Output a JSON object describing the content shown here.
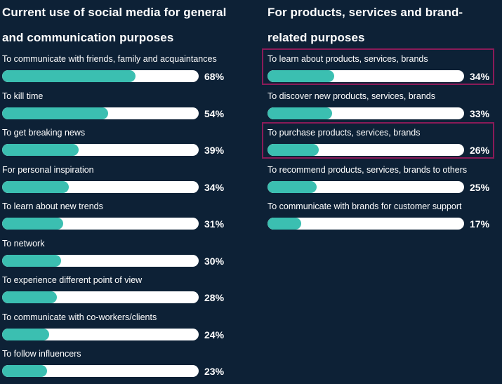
{
  "chart_data": [
    {
      "type": "bar",
      "title": "Current use of social media for general and communication purposes",
      "categories": [
        "To communicate with friends, family and acquaintances",
        "To kill time",
        "To get breaking news",
        "For personal inspiration",
        "To learn about new trends",
        "To network",
        "To experience different point of view",
        "To communicate with co-workers/clients",
        "To follow influencers"
      ],
      "values": [
        68,
        54,
        39,
        34,
        31,
        30,
        28,
        24,
        23
      ],
      "value_labels": [
        "68%",
        "54%",
        "39%",
        "34%",
        "31%",
        "30%",
        "28%",
        "24%",
        "23%"
      ],
      "ylim": [
        0,
        100
      ]
    },
    {
      "type": "bar",
      "title": "For products, services and brand-related purposes",
      "categories": [
        "To learn about products, services, brands",
        "To discover new products, services, brands",
        "To purchase products, services, brands",
        "To recommend products, services, brands to others",
        "To communicate with brands for customer support"
      ],
      "values": [
        34,
        33,
        26,
        25,
        17
      ],
      "value_labels": [
        "34%",
        "33%",
        "26%",
        "25%",
        "17%"
      ],
      "highlighted": [
        true,
        false,
        true,
        false,
        false
      ],
      "ylim": [
        0,
        100
      ]
    }
  ],
  "colors": {
    "background": "#0d2136",
    "bar_fill": "#3bbfb1",
    "bar_track": "#ffffff",
    "highlight_border": "#8a1b58"
  }
}
